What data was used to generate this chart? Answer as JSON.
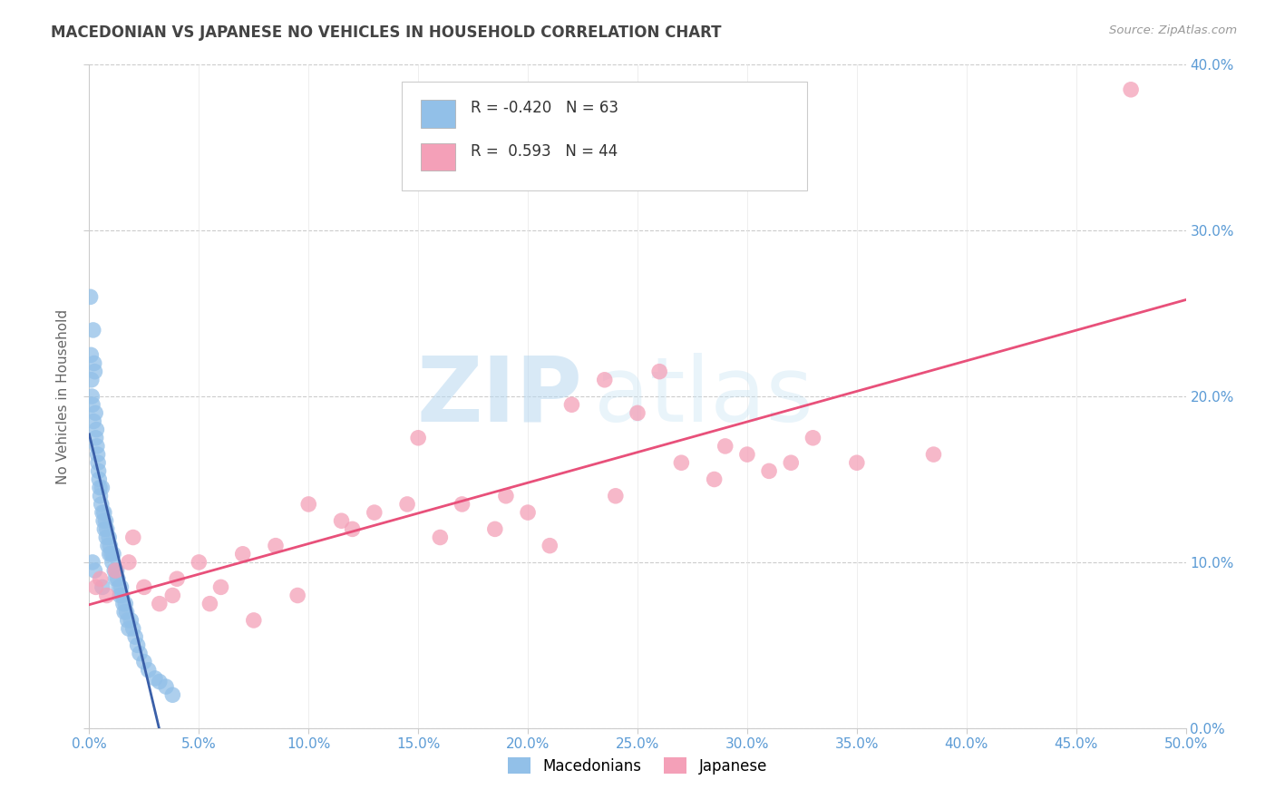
{
  "title": "MACEDONIAN VS JAPANESE NO VEHICLES IN HOUSEHOLD CORRELATION CHART",
  "source": "Source: ZipAtlas.com",
  "xlim": [
    0.0,
    50.0
  ],
  "ylim": [
    0.0,
    40.0
  ],
  "ylabel_ticks": [
    0.0,
    10.0,
    20.0,
    30.0,
    40.0
  ],
  "xlabel_ticks": [
    0.0,
    5.0,
    10.0,
    15.0,
    20.0,
    25.0,
    30.0,
    35.0,
    40.0,
    45.0,
    50.0
  ],
  "macedonian_R": -0.42,
  "macedonian_N": 63,
  "japanese_R": 0.593,
  "japanese_N": 44,
  "macedonian_color": "#92C0E8",
  "japanese_color": "#F4A0B8",
  "macedonian_line_color": "#3A5FA8",
  "japanese_line_color": "#E8507A",
  "background_color": "#FFFFFF",
  "grid_color": "#CCCCCC",
  "watermark_zip": "ZIP",
  "watermark_atlas": "atlas",
  "macedonian_x": [
    0.05,
    0.08,
    0.1,
    0.12,
    0.15,
    0.18,
    0.2,
    0.22,
    0.25,
    0.28,
    0.3,
    0.33,
    0.35,
    0.38,
    0.4,
    0.42,
    0.45,
    0.48,
    0.5,
    0.55,
    0.58,
    0.6,
    0.65,
    0.68,
    0.7,
    0.75,
    0.78,
    0.8,
    0.85,
    0.9,
    0.92,
    0.95,
    1.0,
    1.05,
    1.1,
    1.15,
    1.2,
    1.25,
    1.3,
    1.35,
    1.4,
    1.45,
    1.5,
    1.55,
    1.6,
    1.65,
    1.7,
    1.75,
    1.8,
    1.9,
    2.0,
    2.1,
    2.2,
    2.3,
    2.5,
    2.7,
    3.0,
    3.2,
    3.5,
    3.8,
    0.15,
    0.25,
    0.6
  ],
  "macedonian_y": [
    26.0,
    22.5,
    21.0,
    20.0,
    19.5,
    24.0,
    18.5,
    22.0,
    21.5,
    19.0,
    17.5,
    18.0,
    17.0,
    16.5,
    16.0,
    15.5,
    15.0,
    14.5,
    14.0,
    13.5,
    14.5,
    13.0,
    12.5,
    13.0,
    12.0,
    12.5,
    11.5,
    12.0,
    11.0,
    11.5,
    10.5,
    11.0,
    10.5,
    10.0,
    10.5,
    9.5,
    9.0,
    9.5,
    9.0,
    8.5,
    8.0,
    8.5,
    8.0,
    7.5,
    7.0,
    7.5,
    7.0,
    6.5,
    6.0,
    6.5,
    6.0,
    5.5,
    5.0,
    4.5,
    4.0,
    3.5,
    3.0,
    2.8,
    2.5,
    2.0,
    10.0,
    9.5,
    8.5
  ],
  "japanese_x": [
    0.3,
    0.5,
    0.8,
    1.2,
    1.8,
    2.5,
    3.2,
    4.0,
    5.0,
    6.0,
    7.0,
    8.5,
    10.0,
    11.5,
    13.0,
    15.0,
    17.0,
    18.5,
    20.0,
    22.0,
    23.5,
    25.0,
    27.0,
    28.5,
    30.0,
    31.0,
    33.0,
    35.0,
    2.0,
    3.8,
    5.5,
    7.5,
    9.5,
    12.0,
    14.5,
    16.0,
    19.0,
    21.0,
    24.0,
    26.0,
    29.0,
    32.0,
    38.5,
    47.5
  ],
  "japanese_y": [
    8.5,
    9.0,
    8.0,
    9.5,
    10.0,
    8.5,
    7.5,
    9.0,
    10.0,
    8.5,
    10.5,
    11.0,
    13.5,
    12.5,
    13.0,
    17.5,
    13.5,
    12.0,
    13.0,
    19.5,
    21.0,
    19.0,
    16.0,
    15.0,
    16.5,
    15.5,
    17.5,
    16.0,
    11.5,
    8.0,
    7.5,
    6.5,
    8.0,
    12.0,
    13.5,
    11.5,
    14.0,
    11.0,
    14.0,
    21.5,
    17.0,
    16.0,
    16.5,
    38.5
  ]
}
